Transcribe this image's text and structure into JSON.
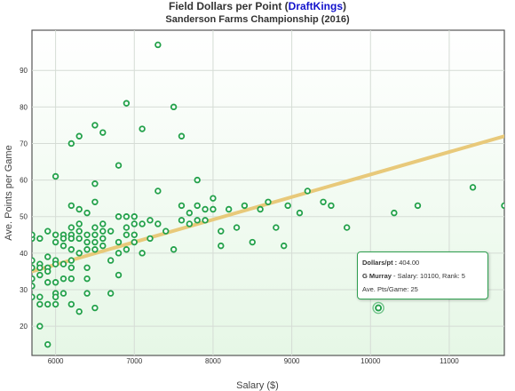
{
  "title": {
    "prefix": "Field Dollars per Point (",
    "brand": "DraftKings",
    "suffix": ")",
    "subtitle": "Sanderson Farms Championship (2016)"
  },
  "colors": {
    "point_stroke": "#23a14a",
    "trend_line": "#e8c97a",
    "plot_bg_top": "#ffffff",
    "plot_bg_bottom": "#e6f7e6",
    "highlight": "#23a14a"
  },
  "tooltip": {
    "dollars_label": "Dollars/pt :",
    "dollars_value": "404.00",
    "player_name": "G Murray",
    "player_detail": "- Salary: 10100, Rank: 5",
    "avg_label": "Ave. Pts/Game: 25"
  },
  "chart_data": {
    "type": "scatter",
    "title": "Field Dollars per Point (DraftKings)",
    "subtitle": "Sanderson Farms Championship (2016)",
    "xlabel": "Salary ($)",
    "ylabel": "Ave. Points per Game",
    "xlim": [
      5700,
      11700
    ],
    "ylim": [
      12,
      101
    ],
    "x_ticks": [
      "6000",
      "7000",
      "8000",
      "9000",
      "10000",
      "11000"
    ],
    "y_ticks": [
      "20",
      "30",
      "40",
      "50",
      "60",
      "70",
      "80",
      "90"
    ],
    "grid": true,
    "trendline": {
      "x": [
        5700,
        11700
      ],
      "y": [
        35,
        72
      ]
    },
    "highlight_point": {
      "x": 10100,
      "y": 25
    },
    "points": [
      [
        5700,
        44
      ],
      [
        5700,
        45
      ],
      [
        5700,
        38
      ],
      [
        5700,
        36
      ],
      [
        5700,
        33
      ],
      [
        5700,
        31
      ],
      [
        5700,
        28
      ],
      [
        5800,
        44
      ],
      [
        5800,
        28
      ],
      [
        5800,
        26
      ],
      [
        5800,
        20
      ],
      [
        5800,
        37
      ],
      [
        5800,
        36
      ],
      [
        5800,
        34
      ],
      [
        5900,
        46
      ],
      [
        5900,
        39
      ],
      [
        5900,
        36
      ],
      [
        5900,
        35
      ],
      [
        5900,
        32
      ],
      [
        5900,
        26
      ],
      [
        5900,
        15
      ],
      [
        6000,
        61
      ],
      [
        6000,
        45
      ],
      [
        6000,
        43
      ],
      [
        6000,
        38
      ],
      [
        6000,
        37
      ],
      [
        6000,
        32
      ],
      [
        6000,
        29
      ],
      [
        6000,
        28
      ],
      [
        6000,
        26
      ],
      [
        6100,
        45
      ],
      [
        6100,
        44
      ],
      [
        6100,
        42
      ],
      [
        6100,
        37
      ],
      [
        6100,
        33
      ],
      [
        6100,
        29
      ],
      [
        6200,
        70
      ],
      [
        6200,
        53
      ],
      [
        6200,
        47
      ],
      [
        6200,
        45
      ],
      [
        6200,
        44
      ],
      [
        6200,
        41
      ],
      [
        6200,
        38
      ],
      [
        6200,
        36
      ],
      [
        6200,
        33
      ],
      [
        6200,
        26
      ],
      [
        6300,
        72
      ],
      [
        6300,
        52
      ],
      [
        6300,
        48
      ],
      [
        6300,
        46
      ],
      [
        6300,
        44
      ],
      [
        6300,
        40
      ],
      [
        6300,
        24
      ],
      [
        6400,
        51
      ],
      [
        6400,
        45
      ],
      [
        6400,
        43
      ],
      [
        6400,
        41
      ],
      [
        6400,
        36
      ],
      [
        6400,
        33
      ],
      [
        6400,
        29
      ],
      [
        6500,
        75
      ],
      [
        6500,
        59
      ],
      [
        6500,
        54
      ],
      [
        6500,
        47
      ],
      [
        6500,
        45
      ],
      [
        6500,
        43
      ],
      [
        6500,
        41
      ],
      [
        6500,
        25
      ],
      [
        6600,
        73
      ],
      [
        6600,
        48
      ],
      [
        6600,
        46
      ],
      [
        6600,
        44
      ],
      [
        6600,
        42
      ],
      [
        6700,
        46
      ],
      [
        6700,
        38
      ],
      [
        6700,
        29
      ],
      [
        6800,
        64
      ],
      [
        6800,
        50
      ],
      [
        6800,
        43
      ],
      [
        6800,
        40
      ],
      [
        6800,
        34
      ],
      [
        6900,
        81
      ],
      [
        6900,
        50
      ],
      [
        6900,
        47
      ],
      [
        6900,
        45
      ],
      [
        6900,
        41
      ],
      [
        7000,
        50
      ],
      [
        7000,
        48
      ],
      [
        7000,
        45
      ],
      [
        7000,
        43
      ],
      [
        7100,
        74
      ],
      [
        7100,
        48
      ],
      [
        7100,
        40
      ],
      [
        7200,
        49
      ],
      [
        7200,
        44
      ],
      [
        7300,
        97
      ],
      [
        7300,
        57
      ],
      [
        7300,
        48
      ],
      [
        7400,
        46
      ],
      [
        7500,
        80
      ],
      [
        7500,
        41
      ],
      [
        7600,
        72
      ],
      [
        7600,
        53
      ],
      [
        7600,
        49
      ],
      [
        7700,
        51
      ],
      [
        7700,
        48
      ],
      [
        7800,
        60
      ],
      [
        7800,
        53
      ],
      [
        7800,
        49
      ],
      [
        7900,
        52
      ],
      [
        7900,
        49
      ],
      [
        8000,
        55
      ],
      [
        8000,
        52
      ],
      [
        8100,
        46
      ],
      [
        8100,
        42
      ],
      [
        8200,
        52
      ],
      [
        8300,
        47
      ],
      [
        8400,
        53
      ],
      [
        8500,
        43
      ],
      [
        8600,
        52
      ],
      [
        8700,
        54
      ],
      [
        8800,
        47
      ],
      [
        8900,
        42
      ],
      [
        8950,
        53
      ],
      [
        9100,
        51
      ],
      [
        9200,
        57
      ],
      [
        9400,
        54
      ],
      [
        9500,
        53
      ],
      [
        9700,
        47
      ],
      [
        10300,
        51
      ],
      [
        10600,
        53
      ],
      [
        11300,
        58
      ],
      [
        11700,
        53
      ]
    ]
  }
}
